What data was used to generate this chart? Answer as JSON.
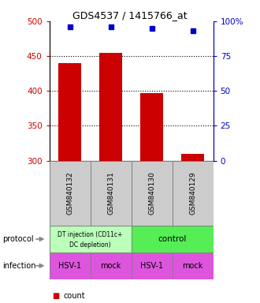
{
  "title": "GDS4537 / 1415766_at",
  "samples": [
    "GSM840132",
    "GSM840131",
    "GSM840130",
    "GSM840129"
  ],
  "bar_values": [
    440,
    455,
    397,
    310
  ],
  "percentile_values": [
    96,
    96,
    95,
    93
  ],
  "ylim": [
    300,
    500
  ],
  "yticks_left": [
    300,
    350,
    400,
    450,
    500
  ],
  "yticks_right": [
    0,
    25,
    50,
    75,
    100
  ],
  "bar_color": "#cc0000",
  "dot_color": "#0000cc",
  "grid_lines": [
    350,
    400,
    450
  ],
  "protocol_colors": [
    "#bbffbb",
    "#55ee55"
  ],
  "infection_labels": [
    "HSV-1",
    "mock",
    "HSV-1",
    "mock"
  ],
  "infection_color": "#dd55dd",
  "sample_box_color": "#cccccc",
  "left_label_color": "#cc0000",
  "right_label_color": "#0000cc",
  "legend_count_color": "#cc0000",
  "legend_pct_color": "#0000cc"
}
